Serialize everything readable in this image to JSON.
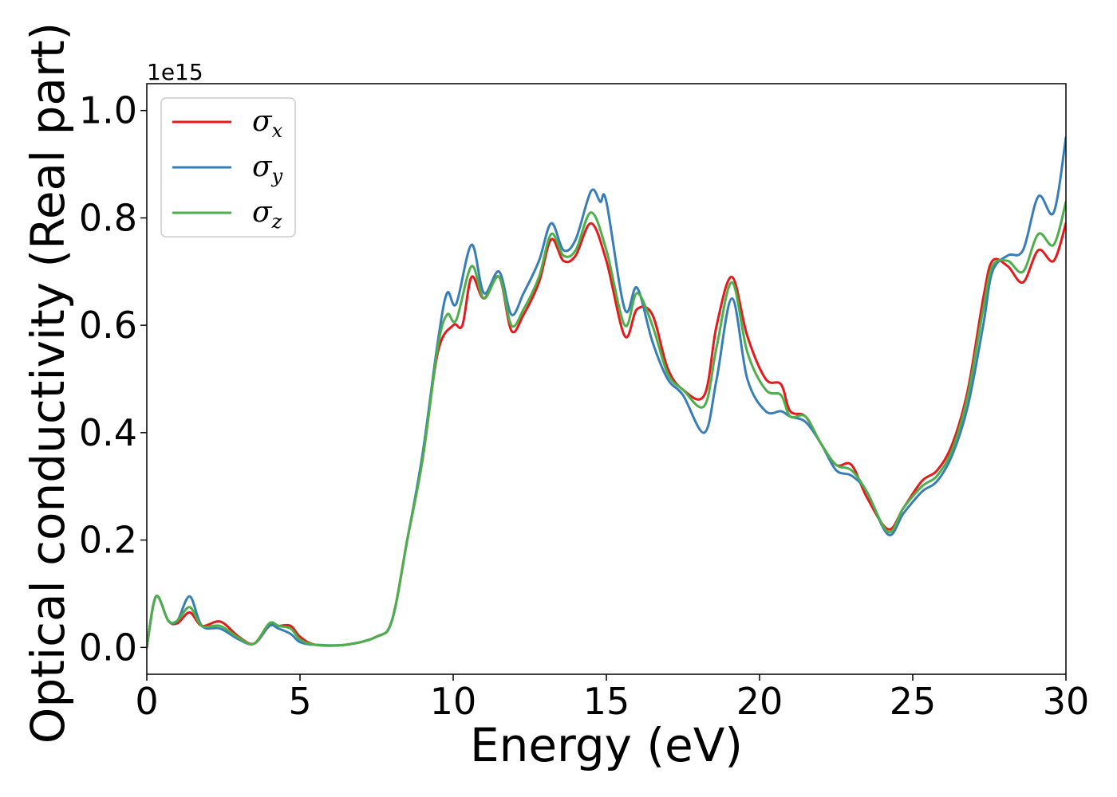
{
  "chart_data": {
    "type": "line",
    "xlabel": "Energy (eV)",
    "ylabel": "Optical conductivity (Real part)",
    "y_offset_label": "1e15",
    "xlim": [
      0,
      30
    ],
    "ylim": [
      -0.05,
      1.05
    ],
    "x_ticks": [
      0,
      5,
      10,
      15,
      20,
      25,
      30
    ],
    "x_tick_labels": [
      "0",
      "5",
      "10",
      "15",
      "20",
      "25",
      "30"
    ],
    "y_ticks": [
      0.0,
      0.2,
      0.4,
      0.6,
      0.8,
      1.0
    ],
    "y_tick_labels": [
      "0.0",
      "0.2",
      "0.4",
      "0.6",
      "0.8",
      "1.0"
    ],
    "grid": false,
    "legend_position": "top-left",
    "series": [
      {
        "name": "σx",
        "symbol": "σ",
        "subscript": "x",
        "color": "#e41a1c",
        "points": [
          [
            0,
            0.0
          ],
          [
            0.3,
            0.095
          ],
          [
            0.7,
            0.05
          ],
          [
            1.0,
            0.045
          ],
          [
            1.4,
            0.065
          ],
          [
            1.8,
            0.04
          ],
          [
            2.4,
            0.048
          ],
          [
            3.0,
            0.02
          ],
          [
            3.5,
            0.007
          ],
          [
            4.0,
            0.04
          ],
          [
            4.3,
            0.04
          ],
          [
            4.7,
            0.04
          ],
          [
            5.0,
            0.02
          ],
          [
            5.5,
            0.005
          ],
          [
            6.5,
            0.005
          ],
          [
            7.5,
            0.02
          ],
          [
            8.0,
            0.05
          ],
          [
            8.5,
            0.2
          ],
          [
            9.0,
            0.35
          ],
          [
            9.5,
            0.55
          ],
          [
            10.0,
            0.6
          ],
          [
            10.3,
            0.6
          ],
          [
            10.6,
            0.69
          ],
          [
            11.0,
            0.65
          ],
          [
            11.5,
            0.69
          ],
          [
            11.9,
            0.59
          ],
          [
            12.3,
            0.62
          ],
          [
            12.8,
            0.68
          ],
          [
            13.2,
            0.76
          ],
          [
            13.6,
            0.72
          ],
          [
            14.0,
            0.73
          ],
          [
            14.5,
            0.79
          ],
          [
            15.0,
            0.72
          ],
          [
            15.6,
            0.58
          ],
          [
            16.0,
            0.63
          ],
          [
            16.5,
            0.62
          ],
          [
            17.0,
            0.52
          ],
          [
            17.5,
            0.48
          ],
          [
            18.2,
            0.47
          ],
          [
            18.6,
            0.6
          ],
          [
            19.1,
            0.69
          ],
          [
            19.6,
            0.58
          ],
          [
            20.2,
            0.5
          ],
          [
            20.7,
            0.49
          ],
          [
            21.0,
            0.44
          ],
          [
            21.5,
            0.43
          ],
          [
            22.0,
            0.38
          ],
          [
            22.5,
            0.34
          ],
          [
            23.0,
            0.34
          ],
          [
            23.5,
            0.28
          ],
          [
            24.2,
            0.22
          ],
          [
            24.7,
            0.26
          ],
          [
            25.3,
            0.31
          ],
          [
            25.8,
            0.33
          ],
          [
            26.3,
            0.38
          ],
          [
            26.8,
            0.48
          ],
          [
            27.3,
            0.65
          ],
          [
            27.6,
            0.72
          ],
          [
            28.1,
            0.71
          ],
          [
            28.6,
            0.68
          ],
          [
            29.1,
            0.74
          ],
          [
            29.6,
            0.72
          ],
          [
            30.0,
            0.79
          ]
        ]
      },
      {
        "name": "σy",
        "symbol": "σ",
        "subscript": "y",
        "color": "#377eb8",
        "points": [
          [
            0,
            0.0
          ],
          [
            0.3,
            0.095
          ],
          [
            0.7,
            0.05
          ],
          [
            1.0,
            0.05
          ],
          [
            1.4,
            0.095
          ],
          [
            1.8,
            0.04
          ],
          [
            2.4,
            0.035
          ],
          [
            3.0,
            0.015
          ],
          [
            3.5,
            0.007
          ],
          [
            4.0,
            0.04
          ],
          [
            4.3,
            0.035
          ],
          [
            4.7,
            0.025
          ],
          [
            5.0,
            0.01
          ],
          [
            5.5,
            0.005
          ],
          [
            6.5,
            0.005
          ],
          [
            7.5,
            0.02
          ],
          [
            8.0,
            0.05
          ],
          [
            8.5,
            0.2
          ],
          [
            9.0,
            0.36
          ],
          [
            9.5,
            0.57
          ],
          [
            9.8,
            0.66
          ],
          [
            10.1,
            0.64
          ],
          [
            10.6,
            0.75
          ],
          [
            11.0,
            0.66
          ],
          [
            11.5,
            0.7
          ],
          [
            11.9,
            0.62
          ],
          [
            12.3,
            0.66
          ],
          [
            12.8,
            0.72
          ],
          [
            13.2,
            0.79
          ],
          [
            13.6,
            0.74
          ],
          [
            14.0,
            0.76
          ],
          [
            14.5,
            0.85
          ],
          [
            14.8,
            0.83
          ],
          [
            15.0,
            0.83
          ],
          [
            15.6,
            0.63
          ],
          [
            16.0,
            0.67
          ],
          [
            16.5,
            0.57
          ],
          [
            17.0,
            0.5
          ],
          [
            17.5,
            0.47
          ],
          [
            18.2,
            0.4
          ],
          [
            18.6,
            0.5
          ],
          [
            19.1,
            0.65
          ],
          [
            19.6,
            0.5
          ],
          [
            20.2,
            0.44
          ],
          [
            20.7,
            0.44
          ],
          [
            21.0,
            0.43
          ],
          [
            21.5,
            0.42
          ],
          [
            22.0,
            0.38
          ],
          [
            22.5,
            0.33
          ],
          [
            23.0,
            0.32
          ],
          [
            23.5,
            0.29
          ],
          [
            24.2,
            0.21
          ],
          [
            24.7,
            0.25
          ],
          [
            25.3,
            0.29
          ],
          [
            25.8,
            0.31
          ],
          [
            26.3,
            0.36
          ],
          [
            26.8,
            0.45
          ],
          [
            27.3,
            0.6
          ],
          [
            27.6,
            0.7
          ],
          [
            28.1,
            0.73
          ],
          [
            28.6,
            0.74
          ],
          [
            29.1,
            0.84
          ],
          [
            29.6,
            0.81
          ],
          [
            30.0,
            0.95
          ]
        ]
      },
      {
        "name": "σz",
        "symbol": "σ",
        "subscript": "z",
        "color": "#4daf4a",
        "points": [
          [
            0,
            0.0
          ],
          [
            0.3,
            0.095
          ],
          [
            0.7,
            0.05
          ],
          [
            1.0,
            0.05
          ],
          [
            1.4,
            0.075
          ],
          [
            1.8,
            0.04
          ],
          [
            2.4,
            0.04
          ],
          [
            3.0,
            0.018
          ],
          [
            3.5,
            0.007
          ],
          [
            4.0,
            0.045
          ],
          [
            4.3,
            0.04
          ],
          [
            4.7,
            0.035
          ],
          [
            5.0,
            0.015
          ],
          [
            5.5,
            0.005
          ],
          [
            6.5,
            0.005
          ],
          [
            7.5,
            0.02
          ],
          [
            8.0,
            0.05
          ],
          [
            8.5,
            0.2
          ],
          [
            9.0,
            0.35
          ],
          [
            9.5,
            0.56
          ],
          [
            9.8,
            0.62
          ],
          [
            10.1,
            0.61
          ],
          [
            10.6,
            0.71
          ],
          [
            11.0,
            0.65
          ],
          [
            11.5,
            0.69
          ],
          [
            11.9,
            0.6
          ],
          [
            12.3,
            0.63
          ],
          [
            12.8,
            0.69
          ],
          [
            13.2,
            0.77
          ],
          [
            13.6,
            0.73
          ],
          [
            14.0,
            0.74
          ],
          [
            14.5,
            0.81
          ],
          [
            15.0,
            0.74
          ],
          [
            15.6,
            0.6
          ],
          [
            16.0,
            0.66
          ],
          [
            16.5,
            0.6
          ],
          [
            17.0,
            0.51
          ],
          [
            17.5,
            0.48
          ],
          [
            18.2,
            0.45
          ],
          [
            18.6,
            0.56
          ],
          [
            19.1,
            0.68
          ],
          [
            19.6,
            0.55
          ],
          [
            20.2,
            0.48
          ],
          [
            20.7,
            0.47
          ],
          [
            21.0,
            0.43
          ],
          [
            21.5,
            0.43
          ],
          [
            22.0,
            0.38
          ],
          [
            22.5,
            0.34
          ],
          [
            23.0,
            0.33
          ],
          [
            23.5,
            0.29
          ],
          [
            24.2,
            0.215
          ],
          [
            24.7,
            0.26
          ],
          [
            25.3,
            0.3
          ],
          [
            25.8,
            0.32
          ],
          [
            26.3,
            0.37
          ],
          [
            26.8,
            0.47
          ],
          [
            27.3,
            0.63
          ],
          [
            27.6,
            0.71
          ],
          [
            28.1,
            0.72
          ],
          [
            28.6,
            0.7
          ],
          [
            29.1,
            0.77
          ],
          [
            29.6,
            0.75
          ],
          [
            30.0,
            0.83
          ]
        ]
      }
    ]
  }
}
